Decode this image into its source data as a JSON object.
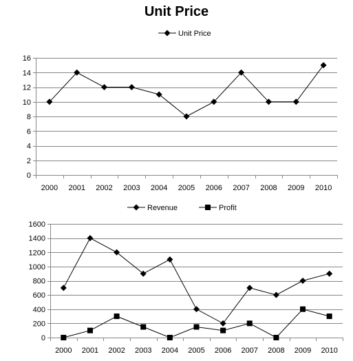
{
  "chart_data": [
    {
      "type": "line",
      "title": "Unit Price",
      "xlabel": "",
      "ylabel": "",
      "x": [
        "2000",
        "2001",
        "2002",
        "2003",
        "2004",
        "2005",
        "2006",
        "2007",
        "2008",
        "2009",
        "2010"
      ],
      "series": [
        {
          "name": "Unit Price",
          "marker": "diamond",
          "values": [
            10,
            14,
            12,
            12,
            11,
            8,
            10,
            14,
            10,
            10,
            15
          ]
        }
      ],
      "ylim": [
        0,
        16
      ],
      "yticks": [
        0,
        2,
        4,
        6,
        8,
        10,
        12,
        14,
        16
      ],
      "grid": true,
      "legend": "top"
    },
    {
      "type": "line",
      "title": "",
      "xlabel": "",
      "ylabel": "",
      "x": [
        "2000",
        "2001",
        "2002",
        "2003",
        "2004",
        "2005",
        "2006",
        "2007",
        "2008",
        "2009",
        "2010"
      ],
      "series": [
        {
          "name": "Revenue",
          "marker": "diamond",
          "values": [
            700,
            1400,
            1200,
            900,
            1100,
            400,
            200,
            700,
            600,
            800,
            900
          ]
        },
        {
          "name": "Profit",
          "marker": "square",
          "values": [
            0,
            100,
            300,
            150,
            0,
            150,
            100,
            200,
            0,
            400,
            300
          ]
        }
      ],
      "ylim": [
        0,
        1600
      ],
      "yticks": [
        0,
        200,
        400,
        600,
        800,
        1000,
        1200,
        1400,
        1600
      ],
      "grid": true,
      "legend": "top"
    }
  ]
}
